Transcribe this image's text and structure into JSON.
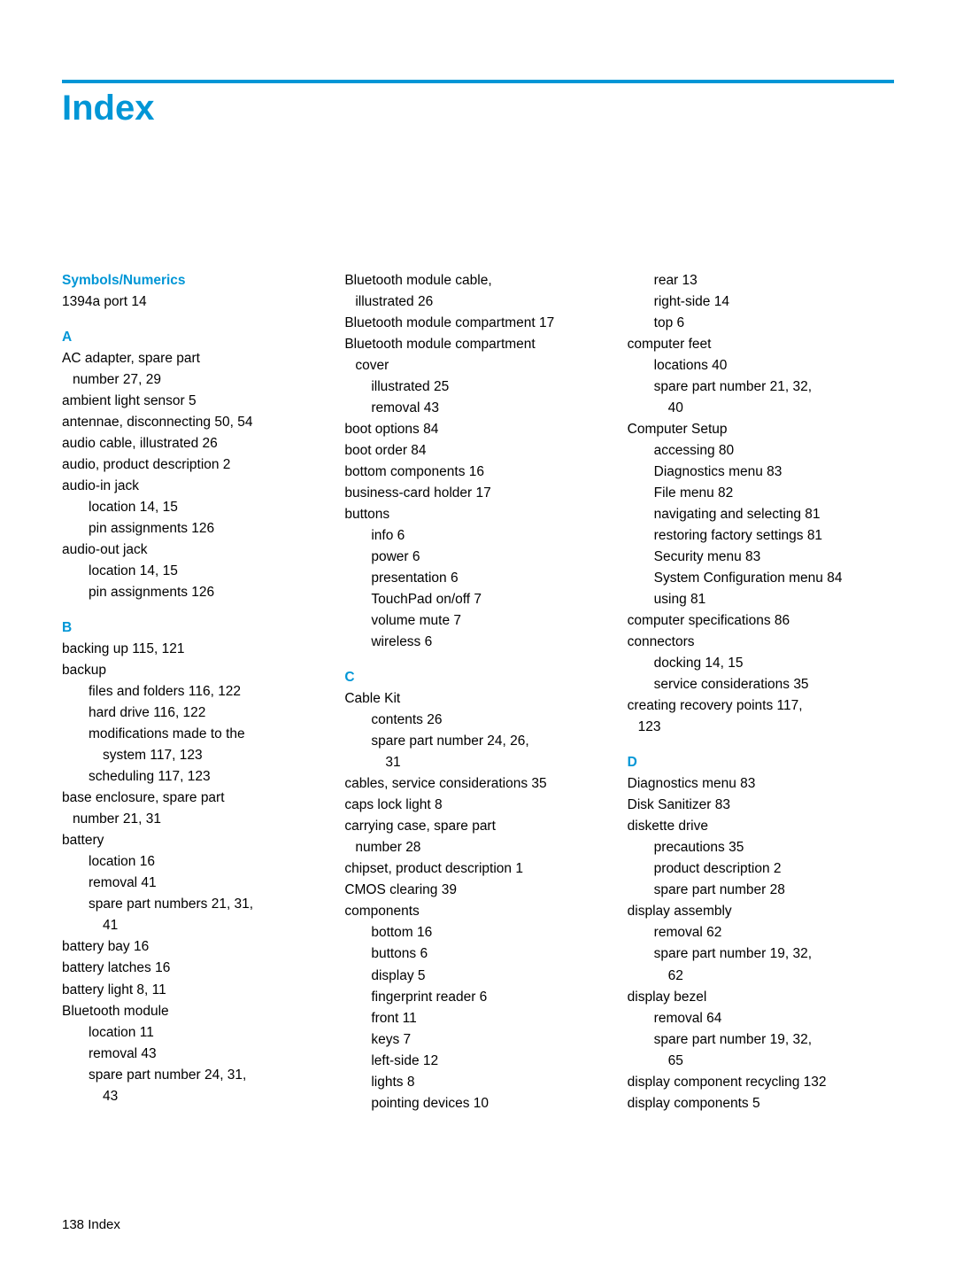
{
  "title": "Index",
  "footer": "138  Index",
  "colors": {
    "accent": "#0096d6",
    "text": "#000000",
    "bg": "#ffffff"
  },
  "fontSizes": {
    "title": 40,
    "body": 15.5,
    "footer": 15
  },
  "col1": {
    "hdr1": "Symbols/Numerics",
    "e1": "1394a port   14",
    "hdrA": "A",
    "a1": "AC adapter, spare part",
    "a1b": "number   27,  29",
    "a2": "ambient light sensor   5",
    "a3": "antennae, disconnecting   50,  54",
    "a4": "audio cable, illustrated   26",
    "a5": "audio, product description   2",
    "a6": "audio-in jack",
    "a6a": "location   14,  15",
    "a6b": "pin assignments   126",
    "a7": "audio-out jack",
    "a7a": "location   14,  15",
    "a7b": "pin assignments   126",
    "hdrB": "B",
    "b1": "backing up   115,  121",
    "b2": "backup",
    "b2a": "files and folders   116,  122",
    "b2b": "hard drive   116,  122",
    "b2c": "modifications made to the",
    "b2c2": "system   117,  123",
    "b2d": "scheduling   117,  123",
    "b3": "base enclosure, spare part",
    "b3a": "number   21,  31",
    "b4": "battery",
    "b4a": "location   16",
    "b4b": "removal   41",
    "b4c": "spare part numbers   21,  31,",
    "b4c2": "41",
    "b5": "battery bay   16",
    "b6": "battery latches   16",
    "b7": "battery light   8,  11",
    "b8": "Bluetooth module",
    "b8a": "location   11",
    "b8b": "removal   43",
    "b8c": "spare part number   24,  31,",
    "b8c2": "43"
  },
  "col2": {
    "c0a": "Bluetooth module cable,",
    "c0b": "illustrated   26",
    "c1": "Bluetooth module compartment   17",
    "c2": "Bluetooth module compartment",
    "c2b": "cover",
    "c2c": "illustrated   25",
    "c2d": "removal   43",
    "c3": "boot options   84",
    "c4": "boot order   84",
    "c5": "bottom components   16",
    "c6": "business-card holder   17",
    "c7": "buttons",
    "c7a": "info   6",
    "c7b": "power   6",
    "c7c": "presentation   6",
    "c7d": "TouchPad on/off   7",
    "c7e": "volume mute   7",
    "c7f": "wireless   6",
    "hdrC": "C",
    "ck": "Cable Kit",
    "cka": "contents   26",
    "ckb": "spare part number   24,  26,",
    "ckb2": "31",
    "cs": "cables, service considerations   35",
    "cl": "caps lock light   8",
    "cc": "carrying case, spare part",
    "cc2": "number   28",
    "ch": "chipset, product description   1",
    "cm": "CMOS clearing   39",
    "co": "components",
    "coa": "bottom   16",
    "cob": "buttons   6",
    "coc": "display   5",
    "cod": "fingerprint reader   6",
    "coe": "front   11",
    "cof": "keys   7",
    "cog": "left-side   12",
    "coh": "lights   8",
    "coi": "pointing devices   10"
  },
  "col3": {
    "r1": "rear   13",
    "r2": "right-side   14",
    "r3": "top   6",
    "cf": "computer feet",
    "cfa": "locations   40",
    "cfb": "spare part number   21,  32,",
    "cfb2": "40",
    "cs": "Computer Setup",
    "csa": "accessing   80",
    "csb": "Diagnostics menu   83",
    "csc": "File menu   82",
    "csd": "navigating and selecting   81",
    "cse": "restoring factory settings   81",
    "csf": "Security menu   83",
    "csg": "System Configuration menu   84",
    "csh": "using   81",
    "csp": "computer specifications   86",
    "cn": "connectors",
    "cna": "docking   14,  15",
    "cnb": "service considerations   35",
    "cr": "creating recovery points   117,",
    "cr2": "123",
    "hdrD": "D",
    "d1": "Diagnostics menu   83",
    "d2": "Disk Sanitizer   83",
    "d3": "diskette drive",
    "d3a": "precautions   35",
    "d3b": "product description   2",
    "d3c": "spare part number   28",
    "d4": "display assembly",
    "d4a": "removal   62",
    "d4b": "spare part number   19,  32,",
    "d4b2": "62",
    "d5": "display bezel",
    "d5a": "removal   64",
    "d5b": "spare part number   19,  32,",
    "d5b2": "65",
    "d6": "display component recycling   132",
    "d7": "display components   5"
  }
}
